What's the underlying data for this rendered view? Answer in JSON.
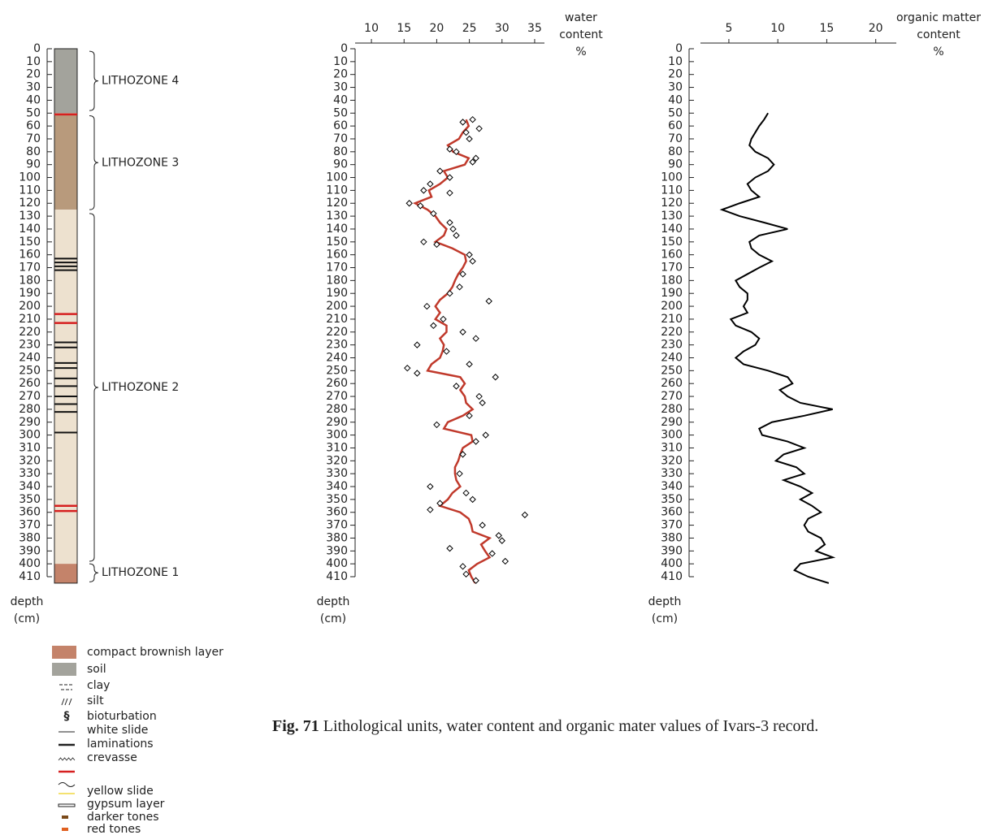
{
  "chart_data": [
    {
      "type": "strat-column",
      "ylim": [
        0,
        410
      ],
      "yticks": [
        0,
        10,
        20,
        30,
        40,
        50,
        60,
        70,
        80,
        90,
        100,
        110,
        120,
        130,
        140,
        150,
        160,
        170,
        180,
        190,
        200,
        210,
        220,
        230,
        240,
        250,
        260,
        270,
        280,
        290,
        300,
        310,
        320,
        330,
        340,
        350,
        360,
        370,
        380,
        390,
        400,
        410
      ],
      "ylabel": [
        "depth",
        "(cm)"
      ],
      "layers": [
        {
          "top": 0,
          "bottom": 50,
          "color": "#a3a39c"
        },
        {
          "top": 50,
          "bottom": 125,
          "color": "#b89a7c"
        },
        {
          "top": 125,
          "bottom": 400,
          "color": "#ede1cf"
        },
        {
          "top": 400,
          "bottom": 415,
          "color": "#c4836a"
        }
      ],
      "laminations": [
        163,
        166,
        169,
        172,
        228,
        232,
        244,
        248,
        256,
        262,
        270,
        276,
        282,
        298
      ],
      "red_lines": [
        51,
        206,
        213,
        355,
        359
      ],
      "zones": [
        {
          "label": "LITHOZONE 4",
          "top": 2,
          "bottom": 48
        },
        {
          "label": "LITHOZONE 3",
          "top": 52,
          "bottom": 125
        },
        {
          "label": "LITHOZONE 2",
          "top": 128,
          "bottom": 398
        },
        {
          "label": "LITHOZONE 1",
          "top": 400,
          "bottom": 414
        }
      ]
    },
    {
      "type": "line",
      "xlabel": [
        "water",
        "content",
        "%"
      ],
      "ylabel": [
        "depth",
        "(cm)"
      ],
      "xlim": [
        7.5,
        36.5
      ],
      "xticks": [
        10,
        15,
        20,
        25,
        30,
        35
      ],
      "ylim": [
        0,
        410
      ],
      "yticks": [
        0,
        10,
        20,
        30,
        40,
        50,
        60,
        70,
        80,
        90,
        100,
        110,
        120,
        130,
        140,
        150,
        160,
        170,
        180,
        190,
        200,
        210,
        220,
        230,
        240,
        250,
        260,
        270,
        280,
        290,
        300,
        310,
        320,
        330,
        340,
        350,
        360,
        370,
        380,
        390,
        400,
        410
      ],
      "depth": [
        55,
        60,
        65,
        70,
        75,
        80,
        85,
        90,
        95,
        100,
        105,
        110,
        115,
        120,
        125,
        130,
        135,
        140,
        145,
        150,
        155,
        160,
        165,
        170,
        175,
        180,
        185,
        190,
        195,
        200,
        205,
        210,
        215,
        220,
        225,
        230,
        235,
        240,
        245,
        250,
        255,
        260,
        265,
        270,
        275,
        280,
        285,
        290,
        295,
        300,
        305,
        310,
        315,
        320,
        325,
        330,
        335,
        340,
        345,
        350,
        355,
        360,
        365,
        370,
        375,
        380,
        385,
        390,
        395,
        400,
        405,
        410,
        415
      ],
      "series": [
        {
          "color": "#c0392b",
          "values": [
            24.5,
            24.9,
            24,
            23.4,
            21.7,
            22.5,
            24.9,
            24.3,
            21.1,
            21.7,
            20.5,
            18.8,
            19.2,
            16.7,
            18.6,
            19.8,
            20.5,
            21.5,
            21.1,
            19.8,
            22.4,
            24.3,
            24.5,
            24,
            23.3,
            22.8,
            22.4,
            21.7,
            20.5,
            19.8,
            20.5,
            19.8,
            21.5,
            21.5,
            20.5,
            21.1,
            20.9,
            20.5,
            19.2,
            18.6,
            23.6,
            24.3,
            23.6,
            24.3,
            24.5,
            25.5,
            24,
            21.7,
            21.1,
            25.3,
            25.5,
            24,
            23.6,
            23.3,
            22.8,
            22.8,
            23,
            23.6,
            22.4,
            21.7,
            20.5,
            23.6,
            24.9,
            25.3,
            25.5,
            28.1,
            26.8,
            27.4,
            28.1,
            26.2,
            24.9,
            25.3,
            25.9
          ]
        }
      ],
      "points": {
        "color": "#000000",
        "depth": [
          55,
          57,
          62,
          65,
          70,
          78,
          80,
          85,
          88,
          95,
          100,
          105,
          110,
          112,
          120,
          122,
          128,
          135,
          140,
          145,
          150,
          152,
          160,
          165,
          175,
          185,
          190,
          196,
          200,
          210,
          215,
          220,
          225,
          230,
          235,
          245,
          248,
          252,
          255,
          262,
          270,
          275,
          285,
          292,
          300,
          305,
          315,
          330,
          340,
          345,
          350,
          353,
          358,
          362,
          370,
          378,
          382,
          388,
          392,
          398,
          402,
          408,
          413
        ],
        "values": [
          25.5,
          24,
          26.5,
          24.5,
          25,
          22,
          23,
          26,
          25.5,
          20.5,
          22,
          19,
          18,
          22,
          15.8,
          17.5,
          19.5,
          22,
          22.5,
          23,
          18,
          20,
          25,
          25.5,
          24,
          23.5,
          22,
          28,
          18.5,
          21,
          19.5,
          24,
          26,
          17,
          21.5,
          25,
          15.5,
          17,
          29,
          23,
          26.5,
          27,
          25,
          20,
          27.5,
          26,
          24,
          23.5,
          19,
          24.5,
          25.5,
          20.5,
          19,
          33.5,
          27,
          29.5,
          30,
          22,
          28.5,
          30.5,
          24,
          24.5,
          26
        ]
      }
    },
    {
      "type": "line",
      "xlabel": [
        "organic matter",
        "content",
        "%"
      ],
      "ylabel": [
        "depth",
        "(cm)"
      ],
      "xlim": [
        2.1,
        22.1
      ],
      "xticks": [
        5,
        10,
        15,
        20
      ],
      "ylim": [
        0,
        410
      ],
      "yticks": [
        0,
        10,
        20,
        30,
        40,
        50,
        60,
        70,
        80,
        90,
        100,
        110,
        120,
        130,
        140,
        150,
        160,
        170,
        180,
        190,
        200,
        210,
        220,
        230,
        240,
        250,
        260,
        270,
        280,
        290,
        300,
        310,
        320,
        330,
        340,
        350,
        360,
        370,
        380,
        390,
        400,
        410
      ],
      "depth": [
        50,
        55,
        60,
        65,
        70,
        75,
        80,
        85,
        90,
        95,
        100,
        105,
        110,
        115,
        120,
        125,
        130,
        135,
        140,
        145,
        150,
        155,
        160,
        165,
        170,
        175,
        180,
        185,
        190,
        195,
        200,
        205,
        210,
        215,
        220,
        225,
        230,
        235,
        240,
        245,
        250,
        255,
        260,
        265,
        270,
        275,
        280,
        285,
        290,
        295,
        300,
        305,
        310,
        315,
        320,
        325,
        330,
        335,
        340,
        345,
        350,
        355,
        360,
        365,
        370,
        375,
        380,
        385,
        390,
        395,
        400,
        405,
        410,
        415
      ],
      "series": [
        {
          "color": "#000000",
          "values": [
            9,
            8.6,
            8.1,
            7.7,
            7.3,
            7.1,
            7.7,
            9,
            9.6,
            9,
            7.7,
            6.9,
            7.3,
            8.1,
            6.1,
            4.3,
            6.1,
            8.6,
            11,
            8.1,
            7.1,
            7.3,
            8.1,
            9.4,
            8.1,
            6.9,
            5.7,
            6.1,
            6.9,
            6.9,
            6.5,
            6.9,
            5.2,
            5.7,
            7.3,
            8.1,
            7.7,
            6.5,
            5.7,
            6.5,
            9,
            11,
            11.5,
            10.2,
            11,
            12.3,
            15.6,
            12.7,
            9.4,
            8.1,
            8.4,
            11,
            12.7,
            10.6,
            9.8,
            11.9,
            12.7,
            10.6,
            12.3,
            13.5,
            12.3,
            13.5,
            14.4,
            13.1,
            12.7,
            13.1,
            14.4,
            14.8,
            13.9,
            15.6,
            12.3,
            11.7,
            13.1,
            15.2
          ]
        }
      ]
    }
  ],
  "legend": [
    {
      "label": "compact brownish layer",
      "color": "#c4836a"
    },
    {
      "label": "soil",
      "color": "#a3a39c"
    },
    {
      "label": "clay"
    },
    {
      "label": "silt"
    },
    {
      "label": "bioturbation",
      "symbol": "§"
    },
    {
      "label": "white slide"
    },
    {
      "label": "laminations"
    },
    {
      "label": "crevasse"
    },
    {
      "label": "yellow slide"
    },
    {
      "label": "gypsum layer"
    },
    {
      "label": "darker tones",
      "color": "#7a4a1a"
    },
    {
      "label": "red tones",
      "color": "#e06020"
    }
  ],
  "caption": {
    "label": "Fig. 71",
    "text": "Lithological units, water content and organic mater values of Ivars-3 record."
  }
}
